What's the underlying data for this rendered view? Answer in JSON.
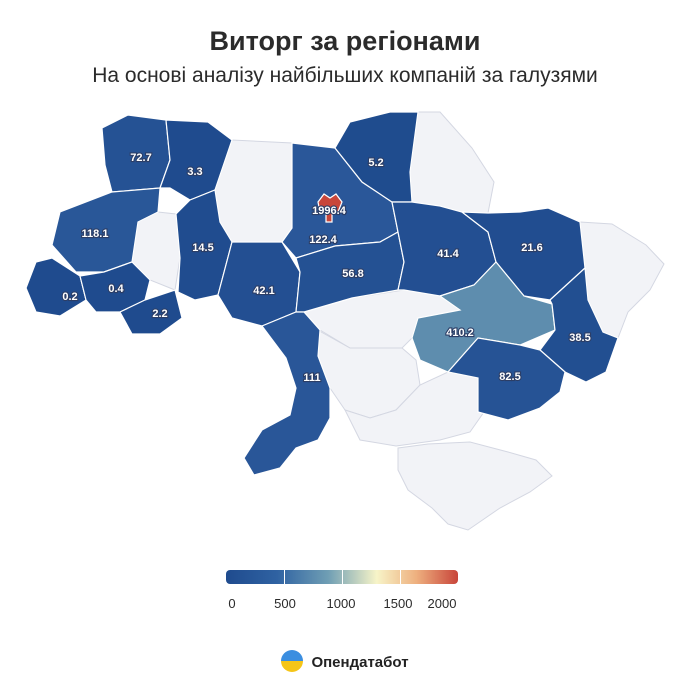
{
  "header": {
    "title": "Виторг за регіонами",
    "subtitle": "На основі аналізу найбільших компаній за галузями"
  },
  "legend": {
    "labels": [
      "0",
      "500",
      "1000",
      "1500",
      "2000"
    ],
    "range": [
      0,
      2000
    ],
    "colors": [
      "#1f4b8e",
      "#6f9eb4",
      "#f7f4c8",
      "#eeb07f",
      "#c8453a"
    ]
  },
  "map": {
    "no_data_color": "#f2f3f7",
    "regions": [
      {
        "name": "volyn",
        "value": "72.7"
      },
      {
        "name": "rivne",
        "value": "3.3"
      },
      {
        "name": "lviv",
        "value": "118.1"
      },
      {
        "name": "ternopil",
        "value": "14.5"
      },
      {
        "name": "zakarpattia",
        "value": "0.2"
      },
      {
        "name": "ivano-frankivsk",
        "value": "0.4"
      },
      {
        "name": "chernivtsi",
        "value": "2.2"
      },
      {
        "name": "khmelnytskyi",
        "value": "42.1"
      },
      {
        "name": "kyiv-oblast",
        "value": "122.4"
      },
      {
        "name": "kyiv-city",
        "value": "1996.4"
      },
      {
        "name": "chernihiv",
        "value": "5.2"
      },
      {
        "name": "cherkasy",
        "value": "56.8"
      },
      {
        "name": "poltava",
        "value": "41.4"
      },
      {
        "name": "kharkiv",
        "value": "21.6"
      },
      {
        "name": "dnipropetrovsk",
        "value": "410.2"
      },
      {
        "name": "donetsk",
        "value": "38.5"
      },
      {
        "name": "zaporizhzhia",
        "value": "82.5"
      },
      {
        "name": "odesa",
        "value": "111"
      }
    ]
  },
  "brand": {
    "name": "Опендатабот",
    "icon": "opendatabot-logo-icon"
  }
}
